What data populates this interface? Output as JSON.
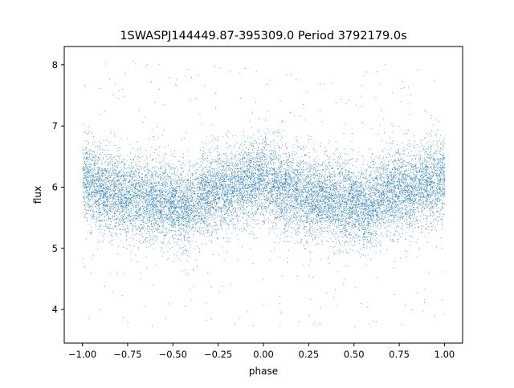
{
  "chart_data": {
    "type": "scatter",
    "title": "1SWASPJ144449.87-395309.0 Period 3792179.0s",
    "xlabel": "phase",
    "ylabel": "flux",
    "xlim": [
      -1.1,
      1.1
    ],
    "ylim": [
      3.45,
      8.3
    ],
    "xticks": [
      -1.0,
      -0.75,
      -0.5,
      -0.25,
      0.0,
      0.25,
      0.5,
      0.75,
      1.0
    ],
    "xtick_labels": [
      "−1.00",
      "−0.75",
      "−0.50",
      "−0.25",
      "0.00",
      "0.25",
      "0.50",
      "0.75",
      "1.00"
    ],
    "yticks": [
      4,
      5,
      6,
      7,
      8
    ],
    "ytick_labels": [
      "4",
      "5",
      "6",
      "7",
      "8"
    ],
    "grid": false,
    "marker_color": "#1f77b4",
    "series": [
      {
        "phase_curve": [
          [
            -1.0,
            6.15
          ],
          [
            -0.9,
            5.95
          ],
          [
            -0.75,
            5.85
          ],
          [
            -0.6,
            5.8
          ],
          [
            -0.5,
            5.75
          ],
          [
            -0.42,
            5.65
          ],
          [
            -0.35,
            5.85
          ],
          [
            -0.25,
            5.95
          ],
          [
            -0.12,
            6.05
          ],
          [
            0.0,
            6.15
          ],
          [
            0.1,
            5.95
          ],
          [
            0.25,
            5.85
          ],
          [
            0.4,
            5.8
          ],
          [
            0.5,
            5.75
          ],
          [
            0.58,
            5.65
          ],
          [
            0.65,
            5.85
          ],
          [
            0.75,
            5.95
          ],
          [
            0.88,
            6.05
          ],
          [
            1.0,
            6.15
          ]
        ],
        "scatter_sd": 0.33,
        "n_points": 14000,
        "x_range": [
          -1.0,
          1.0
        ],
        "outlier_range": [
          3.7,
          8.1
        ]
      }
    ]
  }
}
